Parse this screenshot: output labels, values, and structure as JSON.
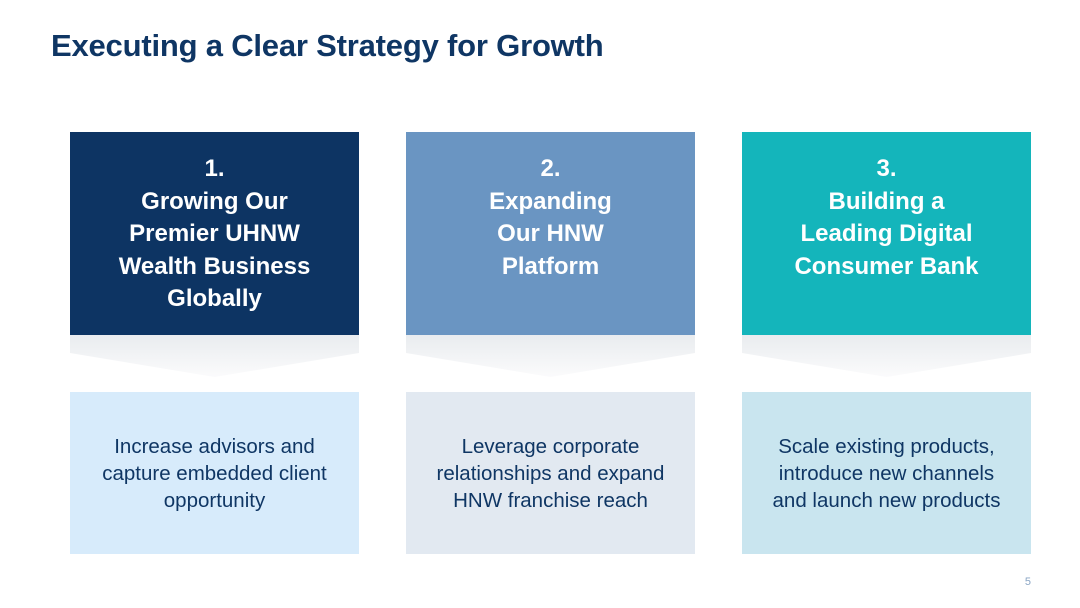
{
  "title": "Executing a Clear Strategy for Growth",
  "pillars": [
    {
      "number": "1.",
      "title_lines": [
        "Growing Our",
        "Premier UHNW",
        "Wealth Business",
        "Globally"
      ],
      "description_lines": [
        "Increase advisors and",
        "capture embedded client",
        "opportunity"
      ],
      "color": "#0d3463",
      "description_bg": "#d7ebfb"
    },
    {
      "number": "2.",
      "title_lines": [
        "Expanding",
        "Our HNW",
        "Platform"
      ],
      "description_lines": [
        "Leverage corporate",
        "relationships and expand",
        "HNW franchise reach"
      ],
      "color": "#6a95c2",
      "description_bg": "#e2e9f1"
    },
    {
      "number": "3.",
      "title_lines": [
        "Building a",
        "Leading Digital",
        "Consumer Bank"
      ],
      "description_lines": [
        "Scale existing products,",
        "introduce new channels",
        "and launch new products"
      ],
      "color": "#14b5bb",
      "description_bg": "#c9e5ef"
    }
  ],
  "page_number": "5",
  "colors": {
    "title": "#0f3664",
    "body_text": "#0f3664",
    "page_number": "#8aa5c4"
  }
}
